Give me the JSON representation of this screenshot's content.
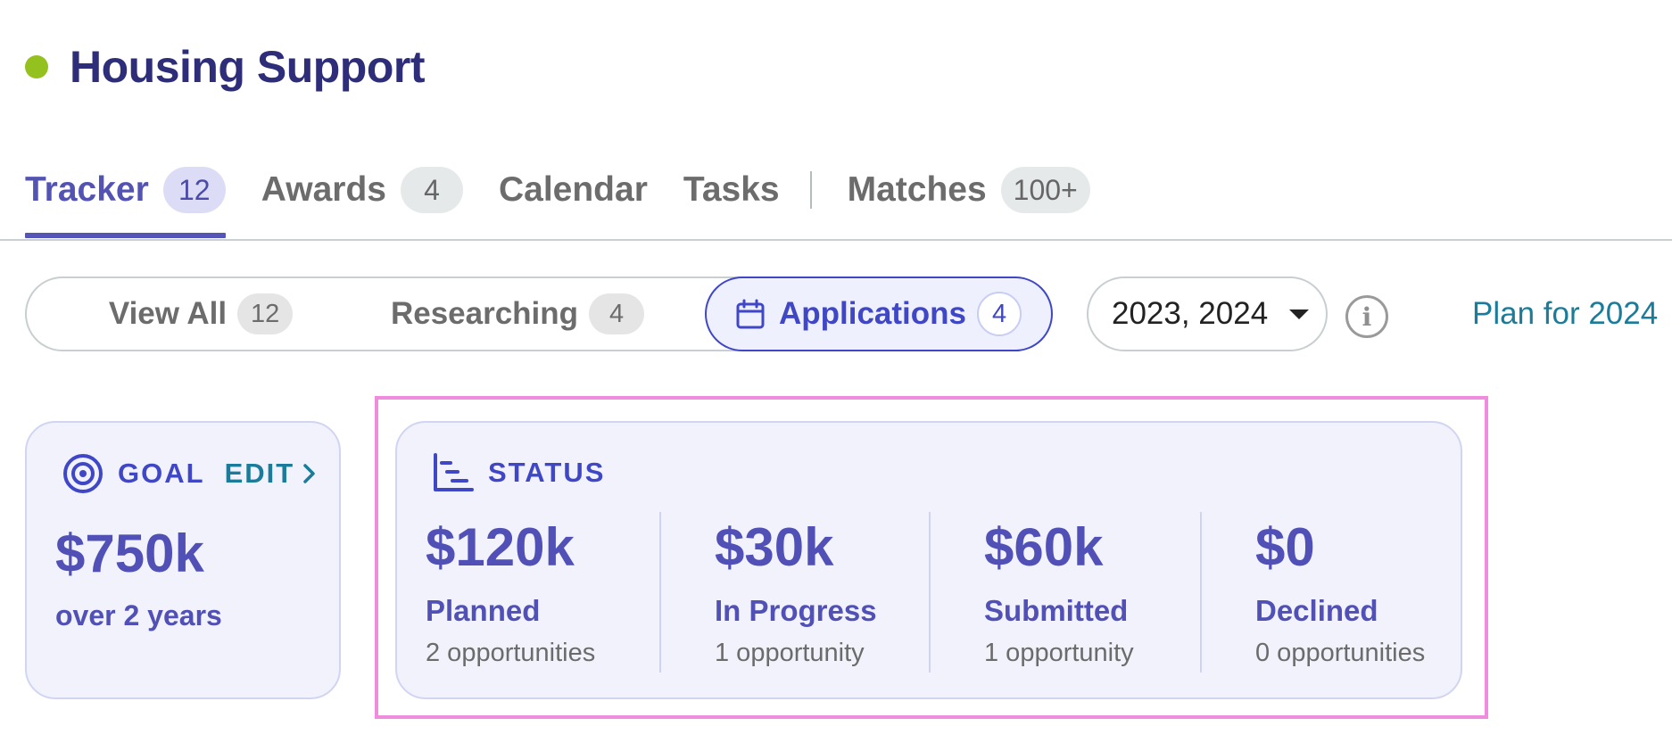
{
  "header": {
    "title": "Housing Support",
    "dot_color": "#95c11f"
  },
  "tabs": [
    {
      "label": "Tracker",
      "badge": "12",
      "active": true
    },
    {
      "label": "Awards",
      "badge": "4"
    },
    {
      "label": "Calendar"
    },
    {
      "label": "Tasks"
    },
    {
      "label": "Matches",
      "badge": "100+"
    }
  ],
  "filters": {
    "segments": [
      {
        "label": "View All",
        "badge": "12"
      },
      {
        "label": "Researching",
        "badge": "4"
      },
      {
        "label": "Applications",
        "badge": "4",
        "active": true,
        "icon": "calendar-icon"
      }
    ],
    "year_select": {
      "value": "2023, 2024"
    },
    "info_icon": "info-icon",
    "plan_link": "Plan for 2024"
  },
  "goal": {
    "label": "GOAL",
    "edit_label": "EDIT",
    "amount": "$750k",
    "subtitle": "over 2 years",
    "icon": "target-icon"
  },
  "status": {
    "label": "STATUS",
    "icon": "gantt-chart-icon",
    "stats": [
      {
        "amount": "$120k",
        "name": "Planned",
        "count": "2 opportunities"
      },
      {
        "amount": "$30k",
        "name": "In Progress",
        "count": "1 opportunity"
      },
      {
        "amount": "$60k",
        "name": "Submitted",
        "count": "1 opportunity"
      },
      {
        "amount": "$0",
        "name": "Declined",
        "count": "0 opportunities"
      }
    ]
  },
  "colors": {
    "primary": "#5050b6",
    "accent_blue": "#3f47c6",
    "link_teal": "#1a7c9a",
    "highlight": "#f08cde"
  }
}
